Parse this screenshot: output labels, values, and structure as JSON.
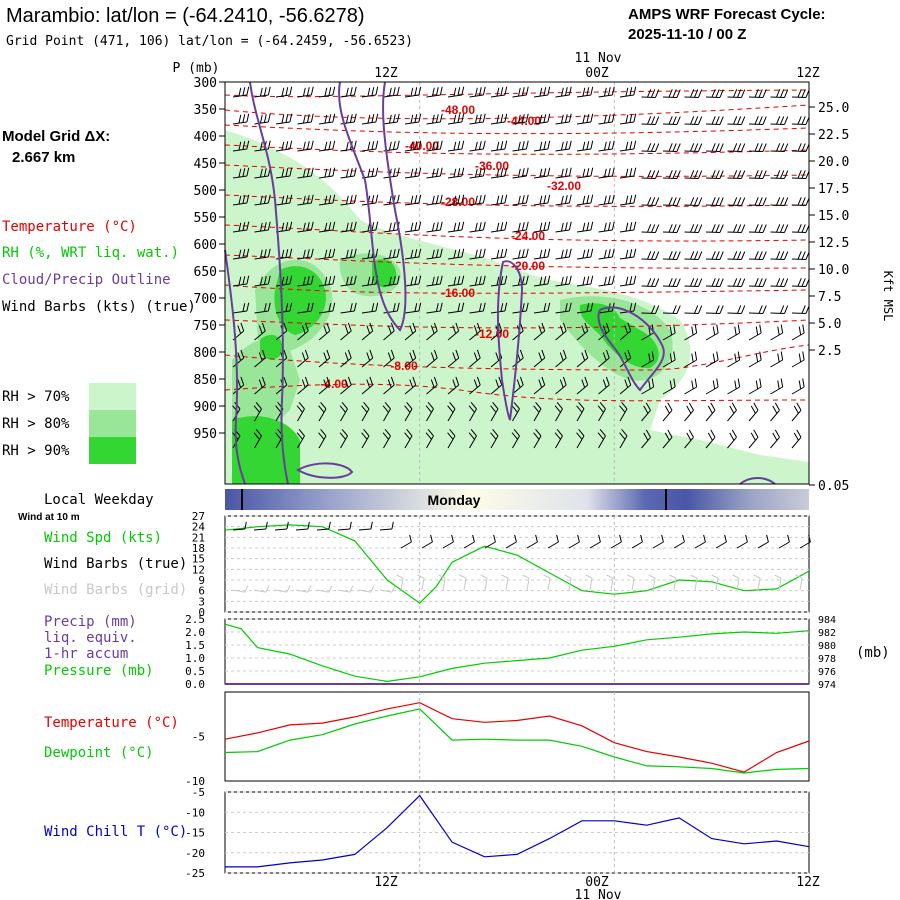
{
  "header": {
    "title": "Marambio:  lat/lon = (-64.2410, -56.6278)",
    "subtitle": "Grid Point (471, 106) lat/lon = (-64.2459, -56.6523)",
    "cycle_label": "AMPS WRF Forecast Cycle:",
    "cycle_value": "2025-11-10 / 00  Z"
  },
  "legend": {
    "grid_title": "Model Grid ΔX:",
    "grid_value": "2.667 km",
    "temperature": "Temperature (°C)",
    "rh": "RH (%, WRT liq. wat.)",
    "cloud": "Cloud/Precip Outline",
    "wind_barbs": "Wind Barbs (kts) (true)",
    "rh_levels": [
      {
        "label": "RH > 70%",
        "color": "#ccf5cc"
      },
      {
        "label": "RH > 80%",
        "color": "#99e699"
      },
      {
        "label": "RH > 90%",
        "color": "#33d633"
      }
    ]
  },
  "colors": {
    "temperature": "#e60000",
    "dewpoint": "#00cc00",
    "cloud": "#6a3d9a",
    "windchill": "#0000cc",
    "precip": "#6a3d9a"
  },
  "time_axis": {
    "top_labels": [
      "12Z",
      "00Z",
      "12Z"
    ],
    "top_date": "11 Nov",
    "bottom_labels": [
      "12Z",
      "00Z",
      "12Z"
    ],
    "bottom_date": "11 Nov",
    "range_hours": [
      0,
      36
    ]
  },
  "weekday_bar": {
    "title": "Local Weekday",
    "day": "Monday"
  },
  "chart_data": [
    {
      "type": "heatmap",
      "name": "cross-section",
      "ylabel_left": "P (mb)",
      "ylabel_right": "Kft MSL",
      "pressure_ticks": [
        "300",
        "350",
        "400",
        "450",
        "500",
        "550",
        "600",
        "650",
        "700",
        "750",
        "800",
        "850",
        "900",
        "950"
      ],
      "height_ticks": [
        "25.0",
        "22.5",
        "20.0",
        "17.5",
        "15.0",
        "12.5",
        "10.0",
        "7.5",
        "5.0",
        "2.5",
        "0.05"
      ],
      "temperature_contours": [
        {
          "label": "-48.00"
        },
        {
          "label": "-44.00"
        },
        {
          "label": "-40.00"
        },
        {
          "label": "-36.00"
        },
        {
          "label": "-32.00"
        },
        {
          "label": "-28.00"
        },
        {
          "label": "-24.00"
        },
        {
          "label": "-20.00"
        },
        {
          "label": "-16.00"
        },
        {
          "label": "-12.00"
        },
        {
          "label": "-8.00"
        },
        {
          "label": "-4.00"
        }
      ]
    },
    {
      "type": "line",
      "name": "wind",
      "title": "Wind at 10 m",
      "labels": [
        "Wind Spd (kts)",
        "Wind Barbs (true)",
        "Wind Barbs (grid)"
      ],
      "yticks": [
        "27",
        "24",
        "21",
        "18",
        "15",
        "12",
        "9",
        "6",
        "3",
        "0"
      ],
      "ylim": [
        0,
        27
      ],
      "x": [
        0,
        2,
        4,
        6,
        8,
        10,
        12,
        13,
        14,
        16,
        18,
        20,
        22,
        24,
        26,
        28,
        30,
        32,
        34,
        36
      ],
      "series": [
        {
          "name": "Wind Spd (kts)",
          "values": [
            23,
            24,
            24.5,
            24,
            20,
            9,
            2.5,
            7,
            14,
            18.5,
            16,
            11,
            6,
            5,
            6,
            9,
            8.5,
            6,
            6.5,
            11.5
          ]
        }
      ]
    },
    {
      "type": "line",
      "name": "precip-pressure",
      "labels": [
        "Precip (mm)",
        "liq. equiv.",
        "1-hr accum",
        "Pressure (mb)"
      ],
      "yticks_left": [
        "2.5",
        "2.0",
        "1.5",
        "1.0",
        "0.5",
        "0.0"
      ],
      "yticks_right": [
        "984",
        "982",
        "980",
        "978",
        "976",
        "974"
      ],
      "right_unit": "(mb)",
      "ylim_left": [
        0,
        2.5
      ],
      "ylim_right": [
        974,
        984
      ],
      "x": [
        0,
        1,
        2,
        4,
        6,
        8,
        10,
        12,
        14,
        16,
        18,
        20,
        22,
        24,
        26,
        28,
        30,
        32,
        34,
        36
      ],
      "series": [
        {
          "name": "Pressure (mb)",
          "values": [
            983.2,
            982.5,
            979.6,
            978.6,
            976.8,
            975.2,
            974.4,
            975.1,
            976.4,
            977.2,
            977.6,
            978.0,
            979.2,
            979.8,
            980.8,
            981.2,
            981.7,
            982.0,
            981.8,
            982.2
          ]
        },
        {
          "name": "Precip (mm)",
          "values": [
            0,
            0,
            0,
            0,
            0,
            0,
            0,
            0,
            0,
            0,
            0,
            0,
            0,
            0,
            0,
            0,
            0,
            0,
            0,
            0
          ]
        }
      ]
    },
    {
      "type": "line",
      "name": "temperature",
      "labels": [
        "Temperature (°C)",
        "Dewpoint (°C)"
      ],
      "yticks": [
        "-5",
        "-10"
      ],
      "ylim": [
        -10,
        0
      ],
      "x": [
        0,
        2,
        4,
        6,
        8,
        10,
        12,
        14,
        16,
        18,
        20,
        22,
        24,
        26,
        28,
        30,
        32,
        34,
        36
      ],
      "series": [
        {
          "name": "Temperature (°C)",
          "values": [
            -5.3,
            -4.6,
            -3.7,
            -3.5,
            -2.8,
            -1.9,
            -1.2,
            -3.0,
            -3.4,
            -3.2,
            -2.7,
            -3.8,
            -5.7,
            -6.7,
            -7.3,
            -8.0,
            -9.0,
            -6.8,
            -5.5
          ]
        },
        {
          "name": "Dewpoint (°C)",
          "values": [
            -6.8,
            -6.7,
            -5.4,
            -4.8,
            -3.6,
            -2.7,
            -1.9,
            -5.4,
            -5.3,
            -5.4,
            -5.4,
            -6.1,
            -7.3,
            -8.3,
            -8.4,
            -8.6,
            -9.1,
            -8.7,
            -8.6
          ]
        }
      ]
    },
    {
      "type": "line",
      "name": "windchill",
      "labels": [
        "Wind Chill T (°C)"
      ],
      "yticks": [
        "-5",
        "-10",
        "-15",
        "-20",
        "-25"
      ],
      "ylim": [
        -25,
        -5
      ],
      "x": [
        0,
        2,
        4,
        6,
        8,
        10,
        12,
        14,
        16,
        18,
        20,
        22,
        24,
        26,
        28,
        30,
        32,
        34,
        36
      ],
      "series": [
        {
          "name": "Wind Chill T (°C)",
          "values": [
            -23.5,
            -23.5,
            -22.5,
            -21.8,
            -20.4,
            -13.8,
            -5.9,
            -17.4,
            -21,
            -20.4,
            -16.5,
            -12.1,
            -12.1,
            -13.2,
            -11.4,
            -16.5,
            -17.8,
            -17.1,
            -18.5
          ]
        }
      ]
    }
  ]
}
